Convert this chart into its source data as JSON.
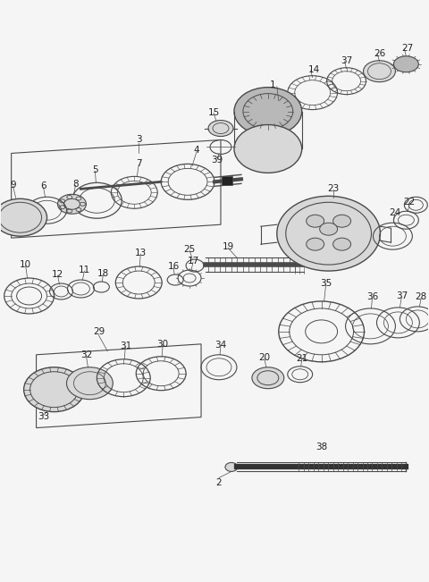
{
  "bg_color": "#f5f5f5",
  "line_color": "#4a4a4a",
  "fill_light": "#d8d8d8",
  "fill_mid": "#b8b8b8",
  "fill_dark": "#888888",
  "fig_width": 4.8,
  "fig_height": 6.51,
  "dpi": 100
}
